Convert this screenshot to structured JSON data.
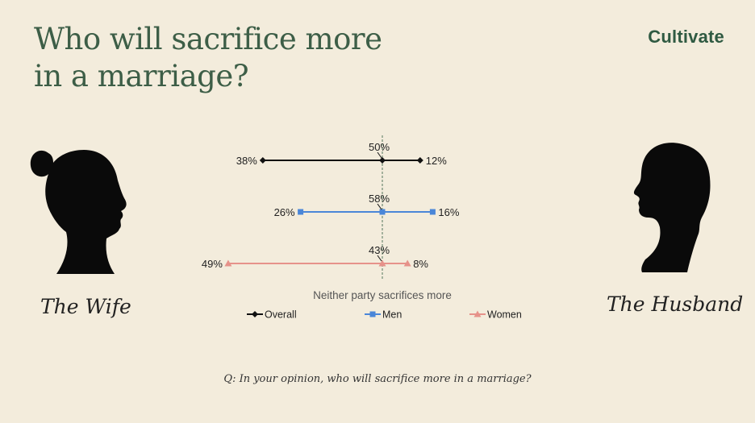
{
  "title": "Who will sacrifice more\nin a marriage?",
  "brand": "Cultivate",
  "captions": {
    "left": "The Wife",
    "right": "The Husband"
  },
  "question": "Q: In your opinion, who will sacrifice more in a marriage?",
  "colors": {
    "title": "#3d5e47",
    "overall": "#111111",
    "men": "#4a86d8",
    "women": "#e6928a",
    "center_line": "#6f8a73",
    "background": "#f3ecdc"
  },
  "icons": {
    "left": "woman-silhouette-icon",
    "right": "man-silhouette-icon"
  },
  "chart_data": {
    "type": "dumbbell",
    "center_label": "Neither party sacrifices more",
    "legend_position": "bottom",
    "series": [
      {
        "name": "Overall",
        "wife": 38,
        "neither": 50,
        "husband": 12,
        "wife_label": "38%",
        "neither_label": "50%",
        "husband_label": "12%",
        "color": "#111111",
        "marker": "diamond"
      },
      {
        "name": "Men",
        "wife": 26,
        "neither": 58,
        "husband": 16,
        "wife_label": "26%",
        "neither_label": "58%",
        "husband_label": "16%",
        "color": "#4a86d8",
        "marker": "square"
      },
      {
        "name": "Women",
        "wife": 49,
        "neither": 43,
        "husband": 8,
        "wife_label": "49%",
        "neither_label": "43%",
        "husband_label": "8%",
        "color": "#e6928a",
        "marker": "triangle"
      }
    ]
  }
}
